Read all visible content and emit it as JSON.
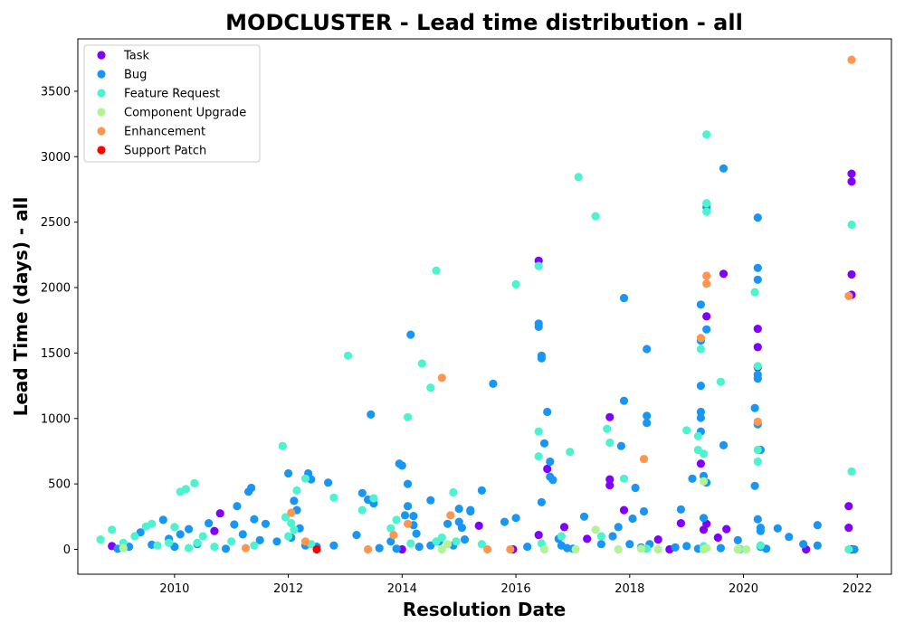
{
  "chart_data": {
    "type": "scatter",
    "title": "MODCLUSTER - Lead time distribution - all",
    "xlabel": "Resolution Date",
    "ylabel": "Lead Time (days) - all",
    "xlim": [
      2008.3,
      2022.6
    ],
    "ylim": [
      -190,
      3900
    ],
    "x_ticks": [
      2010,
      2012,
      2014,
      2016,
      2018,
      2020,
      2022
    ],
    "x_tick_labels": [
      "2010",
      "2012",
      "2014",
      "2016",
      "2018",
      "2020",
      "2022"
    ],
    "y_ticks": [
      0,
      500,
      1000,
      1500,
      2000,
      2500,
      3000,
      3500
    ],
    "y_tick_labels": [
      "0",
      "500",
      "1000",
      "1500",
      "2000",
      "2500",
      "3000",
      "3500"
    ],
    "grid": false,
    "legend_position": "top-left",
    "series": [
      {
        "name": "Task",
        "color": "#8000ff",
        "points": [
          [
            2008.9,
            25
          ],
          [
            2010.7,
            140
          ],
          [
            2010.8,
            275
          ],
          [
            2016.4,
            2205
          ],
          [
            2016.4,
            110
          ],
          [
            2016.55,
            615
          ],
          [
            2016.85,
            170
          ],
          [
            2017.25,
            80
          ],
          [
            2017.65,
            1010
          ],
          [
            2017.65,
            535
          ],
          [
            2017.65,
            490
          ],
          [
            2017.9,
            300
          ],
          [
            2018.5,
            75
          ],
          [
            2018.7,
            0
          ],
          [
            2018.9,
            200
          ],
          [
            2019.25,
            655
          ],
          [
            2019.3,
            150
          ],
          [
            2019.35,
            1780
          ],
          [
            2019.35,
            195
          ],
          [
            2019.55,
            90
          ],
          [
            2019.65,
            2105
          ],
          [
            2019.7,
            155
          ],
          [
            2020.25,
            1685
          ],
          [
            2020.25,
            1545
          ],
          [
            2020.25,
            1390
          ],
          [
            2021.1,
            0
          ],
          [
            2021.85,
            330
          ],
          [
            2021.85,
            165
          ],
          [
            2021.9,
            2870
          ],
          [
            2021.9,
            2810
          ],
          [
            2021.9,
            2100
          ],
          [
            2021.9,
            1945
          ],
          [
            2021.9,
            0
          ],
          [
            2015.35,
            180
          ],
          [
            2015.95,
            0
          ],
          [
            2014.0,
            0
          ]
        ]
      },
      {
        "name": "Bug",
        "color": "#1996f3",
        "points": [
          [
            2009.0,
            5
          ],
          [
            2009.2,
            20
          ],
          [
            2009.4,
            130
          ],
          [
            2009.6,
            35
          ],
          [
            2009.8,
            225
          ],
          [
            2009.9,
            80
          ],
          [
            2010.0,
            20
          ],
          [
            2010.1,
            115
          ],
          [
            2010.25,
            155
          ],
          [
            2010.4,
            40
          ],
          [
            2010.6,
            200
          ],
          [
            2010.9,
            5
          ],
          [
            2011.05,
            190
          ],
          [
            2011.1,
            330
          ],
          [
            2011.2,
            115
          ],
          [
            2011.3,
            440
          ],
          [
            2011.35,
            470
          ],
          [
            2011.4,
            230
          ],
          [
            2011.5,
            70
          ],
          [
            2011.6,
            195
          ],
          [
            2011.8,
            60
          ],
          [
            2012.0,
            580
          ],
          [
            2012.05,
            90
          ],
          [
            2012.1,
            370
          ],
          [
            2012.15,
            300
          ],
          [
            2012.2,
            160
          ],
          [
            2012.3,
            30
          ],
          [
            2012.35,
            580
          ],
          [
            2012.4,
            535
          ],
          [
            2012.5,
            20
          ],
          [
            2012.7,
            510
          ],
          [
            2012.8,
            30
          ],
          [
            2013.2,
            110
          ],
          [
            2013.3,
            430
          ],
          [
            2013.4,
            380
          ],
          [
            2013.45,
            1030
          ],
          [
            2013.5,
            350
          ],
          [
            2013.6,
            10
          ],
          [
            2013.8,
            60
          ],
          [
            2013.9,
            5
          ],
          [
            2013.95,
            655
          ],
          [
            2014.0,
            640
          ],
          [
            2014.05,
            260
          ],
          [
            2014.1,
            330
          ],
          [
            2014.1,
            500
          ],
          [
            2014.15,
            1640
          ],
          [
            2014.2,
            255
          ],
          [
            2014.2,
            185
          ],
          [
            2014.25,
            120
          ],
          [
            2014.3,
            20
          ],
          [
            2014.5,
            30
          ],
          [
            2014.5,
            375
          ],
          [
            2014.65,
            60
          ],
          [
            2014.8,
            195
          ],
          [
            2014.9,
            30
          ],
          [
            2015.0,
            310
          ],
          [
            2015.0,
            210
          ],
          [
            2015.05,
            165
          ],
          [
            2015.1,
            75
          ],
          [
            2015.2,
            290
          ],
          [
            2015.2,
            300
          ],
          [
            2015.4,
            450
          ],
          [
            2015.6,
            1265
          ],
          [
            2015.8,
            210
          ],
          [
            2016.0,
            240
          ],
          [
            2016.2,
            20
          ],
          [
            2016.4,
            1725
          ],
          [
            2016.4,
            1700
          ],
          [
            2016.45,
            1480
          ],
          [
            2016.45,
            1460
          ],
          [
            2016.45,
            360
          ],
          [
            2016.5,
            810
          ],
          [
            2016.55,
            1050
          ],
          [
            2016.6,
            670
          ],
          [
            2016.6,
            555
          ],
          [
            2016.65,
            530
          ],
          [
            2016.75,
            80
          ],
          [
            2016.8,
            30
          ],
          [
            2016.9,
            10
          ],
          [
            2017.0,
            5
          ],
          [
            2017.2,
            250
          ],
          [
            2017.5,
            40
          ],
          [
            2017.7,
            100
          ],
          [
            2017.8,
            170
          ],
          [
            2017.85,
            790
          ],
          [
            2017.9,
            1920
          ],
          [
            2017.9,
            1135
          ],
          [
            2018.0,
            40
          ],
          [
            2018.05,
            235
          ],
          [
            2018.1,
            470
          ],
          [
            2018.2,
            15
          ],
          [
            2018.25,
            290
          ],
          [
            2018.3,
            1530
          ],
          [
            2018.3,
            1020
          ],
          [
            2018.3,
            965
          ],
          [
            2018.35,
            40
          ],
          [
            2018.8,
            15
          ],
          [
            2018.9,
            305
          ],
          [
            2019.0,
            25
          ],
          [
            2019.1,
            540
          ],
          [
            2019.2,
            5
          ],
          [
            2019.25,
            1870
          ],
          [
            2019.25,
            1595
          ],
          [
            2019.25,
            1250
          ],
          [
            2019.25,
            1050
          ],
          [
            2019.25,
            1005
          ],
          [
            2019.25,
            900
          ],
          [
            2019.3,
            560
          ],
          [
            2019.3,
            240
          ],
          [
            2019.35,
            1680
          ],
          [
            2019.35,
            2615
          ],
          [
            2019.35,
            510
          ],
          [
            2019.6,
            10
          ],
          [
            2019.65,
            2910
          ],
          [
            2019.65,
            795
          ],
          [
            2019.9,
            70
          ],
          [
            2020.2,
            1080
          ],
          [
            2020.2,
            485
          ],
          [
            2020.25,
            2535
          ],
          [
            2020.25,
            2150
          ],
          [
            2020.25,
            2060
          ],
          [
            2020.25,
            1335
          ],
          [
            2020.25,
            1305
          ],
          [
            2020.25,
            955
          ],
          [
            2020.25,
            230
          ],
          [
            2020.3,
            760
          ],
          [
            2020.3,
            165
          ],
          [
            2020.3,
            140
          ],
          [
            2020.3,
            20
          ],
          [
            2020.4,
            5
          ],
          [
            2020.6,
            160
          ],
          [
            2020.8,
            95
          ],
          [
            2021.05,
            40
          ],
          [
            2021.3,
            30
          ],
          [
            2021.3,
            185
          ],
          [
            2021.95,
            0
          ]
        ]
      },
      {
        "name": "Feature Request",
        "color": "#4df3ce",
        "points": [
          [
            2008.7,
            75
          ],
          [
            2008.9,
            150
          ],
          [
            2009.1,
            50
          ],
          [
            2009.3,
            100
          ],
          [
            2009.5,
            175
          ],
          [
            2009.6,
            195
          ],
          [
            2009.7,
            30
          ],
          [
            2009.9,
            50
          ],
          [
            2010.0,
            170
          ],
          [
            2010.1,
            440
          ],
          [
            2010.2,
            460
          ],
          [
            2010.25,
            10
          ],
          [
            2010.35,
            505
          ],
          [
            2010.4,
            50
          ],
          [
            2010.5,
            100
          ],
          [
            2010.7,
            20
          ],
          [
            2011.0,
            60
          ],
          [
            2011.4,
            30
          ],
          [
            2011.9,
            790
          ],
          [
            2011.95,
            245
          ],
          [
            2012.0,
            100
          ],
          [
            2012.05,
            200
          ],
          [
            2012.1,
            150
          ],
          [
            2012.15,
            450
          ],
          [
            2012.3,
            540
          ],
          [
            2012.4,
            40
          ],
          [
            2012.8,
            395
          ],
          [
            2013.05,
            1480
          ],
          [
            2013.3,
            300
          ],
          [
            2013.5,
            390
          ],
          [
            2013.8,
            160
          ],
          [
            2013.9,
            225
          ],
          [
            2014.1,
            1010
          ],
          [
            2014.15,
            45
          ],
          [
            2014.35,
            1420
          ],
          [
            2014.5,
            1235
          ],
          [
            2014.6,
            60
          ],
          [
            2014.6,
            2130
          ],
          [
            2014.7,
            90
          ],
          [
            2014.9,
            435
          ],
          [
            2014.95,
            60
          ],
          [
            2015.4,
            40
          ],
          [
            2016.0,
            2025
          ],
          [
            2016.4,
            2165
          ],
          [
            2016.4,
            900
          ],
          [
            2016.4,
            710
          ],
          [
            2016.45,
            45
          ],
          [
            2016.8,
            100
          ],
          [
            2016.95,
            745
          ],
          [
            2017.1,
            2845
          ],
          [
            2017.4,
            2545
          ],
          [
            2017.5,
            100
          ],
          [
            2017.6,
            920
          ],
          [
            2017.65,
            815
          ],
          [
            2017.9,
            540
          ],
          [
            2018.3,
            5
          ],
          [
            2019.0,
            910
          ],
          [
            2019.2,
            760
          ],
          [
            2019.2,
            865
          ],
          [
            2019.25,
            1530
          ],
          [
            2019.3,
            730
          ],
          [
            2019.3,
            25
          ],
          [
            2019.35,
            3170
          ],
          [
            2019.35,
            2645
          ],
          [
            2019.35,
            2580
          ],
          [
            2019.6,
            1280
          ],
          [
            2019.95,
            0
          ],
          [
            2020.2,
            1965
          ],
          [
            2020.25,
            1400
          ],
          [
            2020.25,
            760
          ],
          [
            2020.25,
            670
          ],
          [
            2020.3,
            30
          ],
          [
            2021.85,
            0
          ],
          [
            2021.9,
            2480
          ],
          [
            2021.9,
            595
          ]
        ]
      },
      {
        "name": "Component Upgrade",
        "color": "#b2f396",
        "points": [
          [
            2014.7,
            0
          ],
          [
            2014.8,
            40
          ],
          [
            2017.05,
            0
          ],
          [
            2017.4,
            150
          ],
          [
            2017.8,
            0
          ],
          [
            2018.2,
            5
          ],
          [
            2018.5,
            0
          ],
          [
            2019.3,
            520
          ],
          [
            2019.3,
            0
          ],
          [
            2019.35,
            10
          ],
          [
            2019.9,
            0
          ],
          [
            2020.05,
            0
          ],
          [
            2016.5,
            0
          ],
          [
            2009.1,
            10
          ]
        ]
      },
      {
        "name": "Enhancement",
        "color": "#ff964f",
        "points": [
          [
            2011.25,
            10
          ],
          [
            2012.05,
            280
          ],
          [
            2012.3,
            60
          ],
          [
            2013.4,
            0
          ],
          [
            2013.85,
            110
          ],
          [
            2014.1,
            195
          ],
          [
            2014.7,
            1310
          ],
          [
            2014.85,
            260
          ],
          [
            2015.5,
            0
          ],
          [
            2015.9,
            0
          ],
          [
            2018.25,
            690
          ],
          [
            2019.25,
            1615
          ],
          [
            2019.35,
            2090
          ],
          [
            2019.35,
            2030
          ],
          [
            2020.25,
            975
          ],
          [
            2021.85,
            1935
          ],
          [
            2021.9,
            3740
          ]
        ]
      },
      {
        "name": "Support Patch",
        "color": "#ff0000",
        "points": [
          [
            2012.5,
            0
          ]
        ]
      }
    ]
  }
}
